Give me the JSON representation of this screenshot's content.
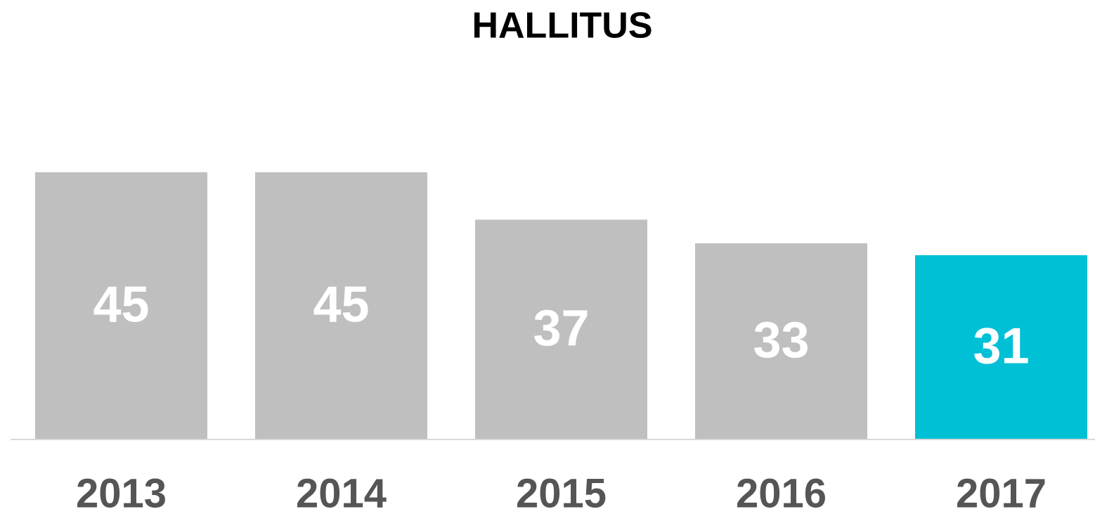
{
  "chart_data": {
    "type": "bar",
    "title": "HALLITUS",
    "categories": [
      "2013",
      "2014",
      "2015",
      "2016",
      "2017"
    ],
    "values": [
      45,
      45,
      37,
      33,
      31
    ],
    "colors": [
      "#bfbfbf",
      "#bfbfbf",
      "#bfbfbf",
      "#bfbfbf",
      "#00c0d6"
    ]
  }
}
